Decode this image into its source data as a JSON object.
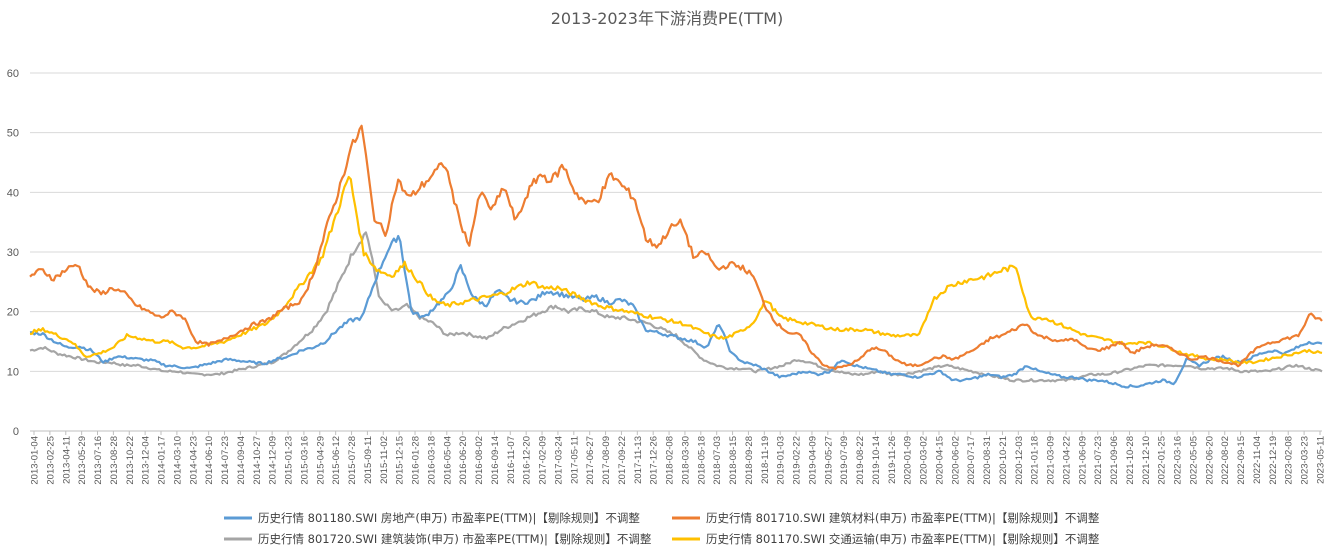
{
  "chart_data": {
    "type": "line",
    "title": "2013-2023年下游消费PE(TTM)",
    "xlabel": "",
    "ylabel": "",
    "ylim": [
      0,
      60
    ],
    "yticks": [
      0,
      10,
      20,
      30,
      40,
      50,
      60
    ],
    "grid": "horizontal",
    "legend_position": "bottom",
    "x_tick_labels": [
      "2013-01-04",
      "2013-02-25",
      "2013-04-11",
      "2013-05-29",
      "2013-07-16",
      "2013-08-28",
      "2013-10-22",
      "2013-12-04",
      "2014-01-17",
      "2014-03-10",
      "2014-04-23",
      "2014-06-10",
      "2014-07-23",
      "2014-09-04",
      "2014-10-27",
      "2014-12-09",
      "2015-01-23",
      "2015-03-16",
      "2015-04-29",
      "2015-06-12",
      "2015-07-28",
      "2015-09-11",
      "2015-11-02",
      "2015-12-15",
      "2016-01-28",
      "2016-03-18",
      "2016-05-04",
      "2016-06-20",
      "2016-08-02",
      "2016-09-14",
      "2016-11-07",
      "2016-12-20",
      "2017-02-09",
      "2017-03-24",
      "2017-05-11",
      "2017-06-27",
      "2017-08-09",
      "2017-09-22",
      "2017-11-13",
      "2017-12-26",
      "2018-02-08",
      "2018-03-30",
      "2018-05-18",
      "2018-07-03",
      "2018-08-15",
      "2018-09-28",
      "2018-11-19",
      "2019-01-03",
      "2019-02-22",
      "2019-04-09",
      "2019-05-27",
      "2019-07-09",
      "2019-08-22",
      "2019-10-14",
      "2019-11-26",
      "2020-01-09",
      "2020-03-02",
      "2020-04-15",
      "2020-06-02",
      "2020-07-17",
      "2020-08-31",
      "2020-10-21",
      "2020-12-03",
      "2021-01-18",
      "2021-03-09",
      "2021-04-22",
      "2021-06-09",
      "2021-07-23",
      "2021-09-06",
      "2021-10-28",
      "2021-12-10",
      "2022-01-25",
      "2022-03-16",
      "2022-05-05",
      "2022-06-20",
      "2022-08-02",
      "2022-09-15",
      "2022-11-04",
      "2022-12-19",
      "2023-02-08",
      "2023-03-23",
      "2023-05-11"
    ],
    "series": [
      {
        "name": "历史行情 801180.SWI 房地产(申万) 市盈率PE(TTM)|【剔除规则】不调整",
        "color": "#5B9BD5",
        "values": [
          16.5,
          16.3,
          15,
          14,
          14.2,
          13.5,
          11.5,
          12.5,
          12.3,
          12,
          11.8,
          11,
          10.8,
          10.5,
          11,
          11.5,
          12,
          11.8,
          11.5,
          11.3,
          12,
          12.5,
          13.5,
          14,
          15,
          17,
          18.5,
          19,
          25,
          30,
          33,
          20,
          19,
          21,
          23,
          27.5,
          22.5,
          21,
          23.5,
          22,
          21.5,
          22,
          23.5,
          23,
          22.5,
          22,
          22.5,
          21.5,
          22,
          21,
          17,
          16.5,
          16,
          15.5,
          15,
          14,
          18,
          13,
          11.5,
          11,
          10,
          9,
          9.5,
          10,
          9.5,
          10,
          12,
          11,
          10.5,
          10,
          9.5,
          9.5,
          9,
          9.5,
          10,
          8.5,
          8.5,
          9,
          9.5,
          9,
          9.5,
          11,
          10,
          9.5,
          9,
          9,
          8.5,
          8.5,
          8,
          7.5,
          7.5,
          8,
          8.5,
          8,
          12,
          11,
          12,
          12.5,
          11.5,
          12,
          13,
          13.5,
          13,
          14,
          15,
          14.5
        ]
      },
      {
        "name": "历史行情 801710.SWI 建筑材料(申万) 市盈率PE(TTM)|【剔除规则】不调整",
        "color": "#ED7D31",
        "values": [
          26,
          27,
          25.5,
          27,
          28,
          24,
          23,
          24,
          23,
          21,
          20,
          19,
          20,
          19,
          15,
          14.5,
          15,
          16,
          17,
          18,
          18.5,
          20,
          21,
          22,
          27,
          34,
          40,
          47,
          51,
          36,
          33,
          42,
          39,
          41,
          43,
          45,
          37,
          31,
          40,
          37,
          41,
          35,
          40,
          43,
          42,
          44.5,
          40,
          38,
          39,
          43,
          41,
          39,
          32,
          31,
          34,
          35,
          29,
          30,
          27,
          28,
          27.5,
          26,
          21,
          18,
          16.5,
          16,
          13,
          11,
          10.5,
          11,
          12,
          14,
          13.5,
          12,
          11,
          11,
          12,
          12.5,
          12,
          13,
          14,
          15.5,
          16,
          17,
          18,
          16,
          15.5,
          15,
          15.5,
          14,
          13.5,
          14,
          15,
          13,
          14,
          14.5,
          14,
          13,
          12,
          12.5,
          12,
          11.5,
          11,
          13,
          14.5,
          15,
          15.5,
          16,
          19.5,
          18.5
        ]
      },
      {
        "name": "历史行情 801720.SWI 建筑装饰(申万) 市盈率PE(TTM)|【剔除规则】不调整",
        "color": "#A5A5A5",
        "values": [
          13.5,
          14,
          13,
          12.5,
          12,
          11.5,
          11.5,
          11,
          11,
          10.5,
          10,
          10,
          9.5,
          9.5,
          9.5,
          10,
          10.5,
          11,
          11.5,
          13,
          15,
          17,
          20,
          25,
          30,
          33.5,
          22,
          20,
          21,
          19,
          18,
          16,
          16.5,
          16,
          15.5,
          17,
          18,
          19,
          20,
          21,
          20,
          20.5,
          20,
          19,
          19,
          18.5,
          18,
          17,
          16,
          14,
          12,
          11,
          10.5,
          10.5,
          10,
          10.5,
          11,
          12,
          11.5,
          10.5,
          10,
          9.5,
          9.5,
          10,
          9.5,
          9.5,
          10,
          10.5,
          11,
          10.5,
          10,
          9.5,
          9,
          8.5,
          8.5,
          8.5,
          8.5,
          8.5,
          9,
          9.5,
          9.5,
          10,
          10.5,
          11,
          11,
          11,
          11,
          10.5,
          10.5,
          10.5,
          10,
          10,
          10,
          10.5,
          11,
          10.5,
          10
        ]
      },
      {
        "name": "历史行情 801170.SWI 交通运输(申万) 市盈率PE(TTM)|【剔除规则】不调整",
        "color": "#FFC000",
        "values": [
          16.5,
          17,
          16,
          15,
          12.5,
          13,
          14,
          16,
          15.5,
          15,
          15,
          14,
          14,
          14.5,
          15,
          16,
          17,
          18,
          20,
          23,
          26,
          29,
          36,
          43,
          30,
          27,
          26,
          28,
          25,
          22,
          21,
          21.5,
          22,
          22.5,
          23,
          24,
          25,
          24,
          24,
          23,
          22,
          21,
          20.5,
          20,
          19.5,
          19,
          18.5,
          18,
          17,
          16,
          15.5,
          16.5,
          18,
          22,
          19,
          18.5,
          18,
          17.5,
          17,
          17,
          17,
          16.5,
          16,
          16,
          16,
          22,
          24,
          25,
          25.5,
          26,
          27,
          27.5,
          19,
          19,
          18,
          17,
          16,
          15.5,
          15,
          14.5,
          15,
          14.5,
          14,
          13,
          12.5,
          12,
          12,
          11.5,
          11.5,
          12,
          12.5,
          13,
          13.5,
          13
        ]
      }
    ]
  }
}
